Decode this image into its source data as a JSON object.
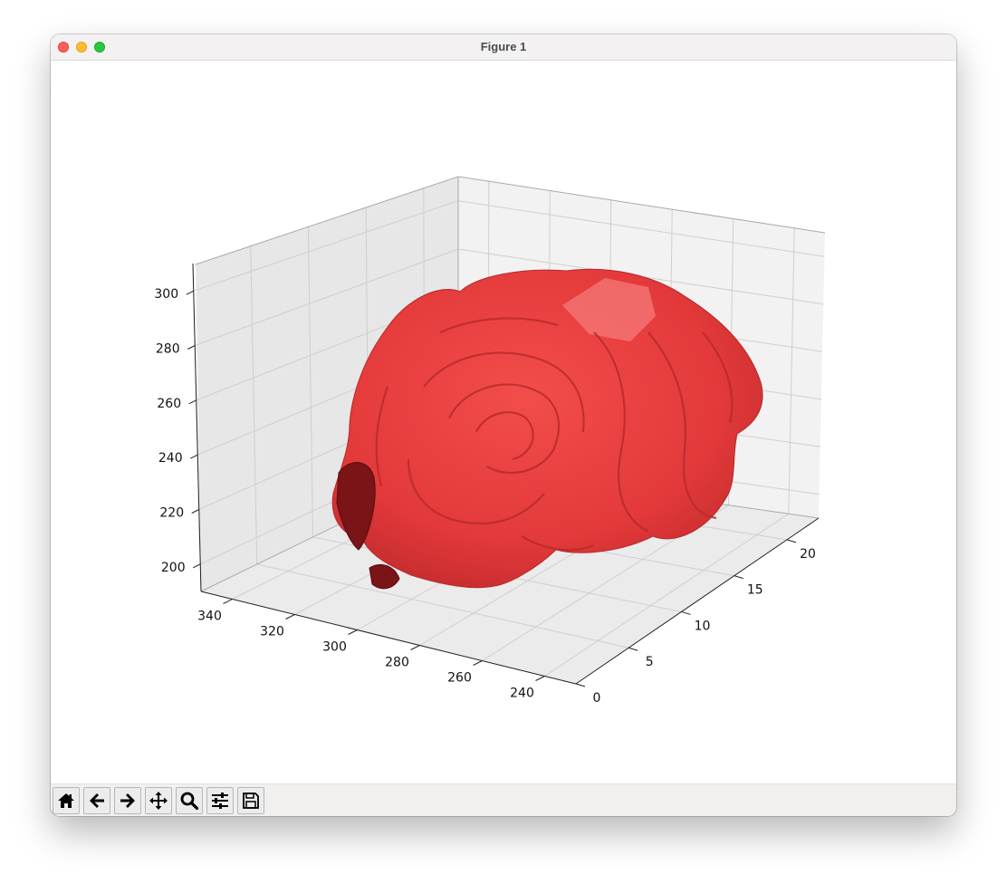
{
  "window": {
    "title": "Figure 1"
  },
  "chart_data": {
    "type": "3d-surface",
    "title": "",
    "xlabel": "",
    "ylabel": "",
    "zlabel": "",
    "x_ticks": [
      340,
      320,
      300,
      280,
      260,
      240
    ],
    "y_ticks": [
      0,
      5,
      10,
      15,
      20
    ],
    "z_ticks": [
      200,
      220,
      240,
      260,
      280,
      300
    ],
    "surface_color": "#e8393a",
    "grid": true
  },
  "toolbar": {
    "buttons": [
      {
        "name": "home-icon",
        "label": "Home"
      },
      {
        "name": "back-icon",
        "label": "Back"
      },
      {
        "name": "forward-icon",
        "label": "Forward"
      },
      {
        "name": "pan-icon",
        "label": "Pan"
      },
      {
        "name": "zoom-icon",
        "label": "Zoom"
      },
      {
        "name": "configure-subplots-icon",
        "label": "Configure subplots"
      },
      {
        "name": "save-icon",
        "label": "Save"
      }
    ]
  }
}
